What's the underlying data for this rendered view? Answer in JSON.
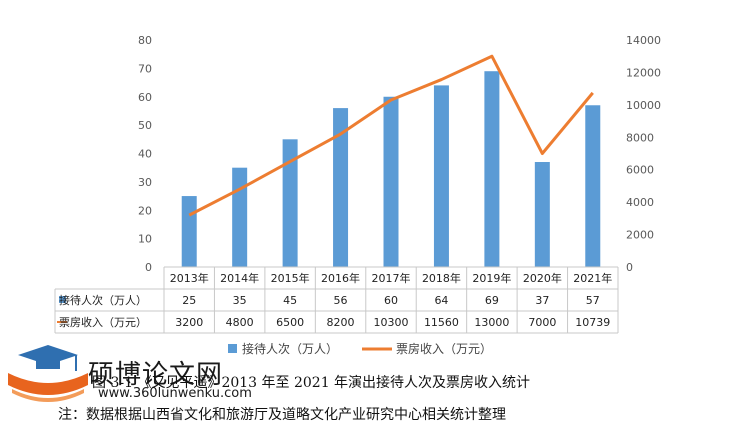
{
  "chart_data": {
    "type": "bar",
    "categories": [
      "2013年",
      "2014年",
      "2015年",
      "2016年",
      "2017年",
      "2018年",
      "2019年",
      "2020年",
      "2021年"
    ],
    "series": [
      {
        "name": "接待人次（万人）",
        "type": "bar",
        "axis": "left",
        "color": "#5b9bd5",
        "values": [
          25,
          35,
          45,
          56,
          60,
          64,
          69,
          37,
          57
        ],
        "labels": [
          "25",
          "35",
          "45",
          "56",
          "60",
          "64",
          "69",
          "37",
          "57"
        ]
      },
      {
        "name": "票房收入（万元）",
        "type": "line",
        "axis": "right",
        "color": "#ed7d31",
        "values": [
          3200,
          4800,
          6500,
          8200,
          10300,
          11560,
          13000,
          7000,
          10739
        ],
        "labels": [
          "3200",
          "4800",
          "6500",
          "8200",
          "10300",
          "11560",
          "13000",
          "7000",
          "10739"
        ]
      }
    ],
    "ylim_left": [
      0,
      80
    ],
    "yticks_left": [
      0,
      10,
      20,
      30,
      40,
      50,
      60,
      70,
      80
    ],
    "yticks_left_labels": [
      "0",
      "10",
      "20",
      "30",
      "40",
      "50",
      "60",
      "70",
      "80"
    ],
    "ylim_right": [
      0,
      14000
    ],
    "yticks_right": [
      0,
      2000,
      4000,
      6000,
      8000,
      10000,
      12000,
      14000
    ],
    "yticks_right_labels": [
      "0",
      "2000",
      "4000",
      "6000",
      "8000",
      "10000",
      "12000",
      "14000"
    ],
    "grid": false,
    "data_table": true,
    "legend_position": "bottom"
  },
  "caption": "图 3-1 《又见平遥》2013 年至 2021 年演出接待人次及票房收入统计",
  "note": "注：数据根据山西省文化和旅游厅及道略文化产业研究中心相关统计整理",
  "watermark": {
    "title": "硕博论文网",
    "url": "www.360lunwenku.com",
    "colors": {
      "cap": "#2f6fb0",
      "book": "#e8641e"
    }
  }
}
